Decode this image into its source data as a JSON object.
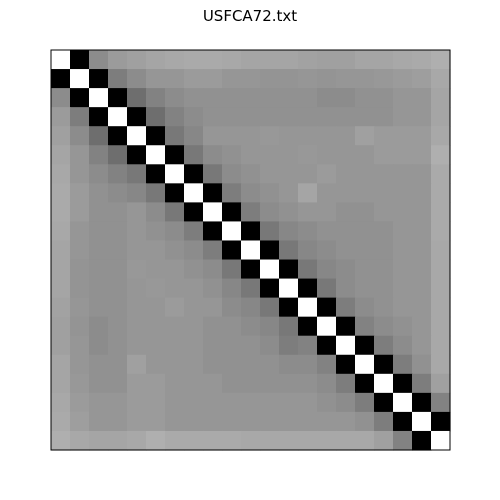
{
  "chart_data": {
    "type": "heatmap",
    "title": "USFCA72.txt",
    "xlabel": "",
    "ylabel": "",
    "grid": false,
    "size": 21,
    "colormap": "gray",
    "vmin": 0,
    "vmax": 255,
    "matrix": [
      [
        255,
        0,
        140,
        155,
        160,
        165,
        168,
        170,
        170,
        168,
        165,
        165,
        165,
        162,
        160,
        160,
        165,
        165,
        168,
        170,
        175
      ],
      [
        0,
        255,
        0,
        125,
        140,
        150,
        150,
        155,
        155,
        150,
        150,
        148,
        148,
        150,
        148,
        150,
        150,
        152,
        155,
        158,
        168
      ],
      [
        140,
        0,
        255,
        0,
        110,
        130,
        140,
        145,
        145,
        145,
        145,
        145,
        145,
        145,
        140,
        140,
        145,
        145,
        150,
        150,
        165
      ],
      [
        155,
        125,
        0,
        255,
        0,
        110,
        130,
        140,
        145,
        145,
        145,
        145,
        145,
        145,
        145,
        145,
        145,
        145,
        150,
        150,
        165
      ],
      [
        160,
        140,
        110,
        0,
        255,
        0,
        120,
        135,
        150,
        150,
        150,
        152,
        150,
        150,
        150,
        150,
        160,
        155,
        155,
        155,
        168
      ],
      [
        165,
        150,
        130,
        110,
        0,
        255,
        0,
        120,
        140,
        145,
        150,
        150,
        150,
        152,
        150,
        150,
        150,
        155,
        155,
        155,
        175
      ],
      [
        168,
        150,
        140,
        130,
        120,
        0,
        255,
        0,
        120,
        140,
        145,
        150,
        150,
        150,
        155,
        150,
        150,
        150,
        150,
        150,
        170
      ],
      [
        170,
        155,
        145,
        140,
        135,
        120,
        0,
        255,
        0,
        125,
        140,
        145,
        150,
        165,
        150,
        150,
        150,
        150,
        150,
        150,
        170
      ],
      [
        170,
        155,
        145,
        145,
        150,
        140,
        120,
        0,
        255,
        0,
        125,
        140,
        145,
        150,
        150,
        145,
        145,
        150,
        150,
        150,
        170
      ],
      [
        168,
        150,
        145,
        145,
        150,
        145,
        140,
        125,
        0,
        255,
        0,
        120,
        135,
        140,
        145,
        145,
        145,
        145,
        150,
        150,
        170
      ],
      [
        165,
        150,
        145,
        145,
        150,
        150,
        145,
        140,
        125,
        0,
        255,
        0,
        120,
        135,
        140,
        145,
        145,
        145,
        150,
        150,
        168
      ],
      [
        165,
        148,
        145,
        145,
        152,
        150,
        150,
        145,
        140,
        120,
        0,
        255,
        0,
        120,
        135,
        140,
        145,
        145,
        150,
        150,
        168
      ],
      [
        165,
        148,
        145,
        145,
        150,
        152,
        150,
        150,
        145,
        135,
        120,
        0,
        255,
        0,
        120,
        140,
        145,
        145,
        150,
        150,
        168
      ],
      [
        162,
        150,
        145,
        145,
        150,
        150,
        155,
        150,
        150,
        140,
        135,
        120,
        0,
        255,
        0,
        125,
        140,
        145,
        150,
        150,
        168
      ],
      [
        160,
        148,
        140,
        145,
        150,
        150,
        150,
        150,
        145,
        145,
        140,
        135,
        120,
        0,
        255,
        0,
        130,
        140,
        145,
        150,
        168
      ],
      [
        160,
        150,
        140,
        145,
        150,
        150,
        150,
        150,
        145,
        145,
        145,
        140,
        125,
        130,
        0,
        255,
        0,
        125,
        140,
        150,
        168
      ],
      [
        165,
        150,
        145,
        145,
        160,
        150,
        150,
        150,
        145,
        145,
        145,
        145,
        140,
        140,
        130,
        0,
        255,
        0,
        125,
        145,
        168
      ],
      [
        165,
        152,
        145,
        145,
        155,
        155,
        150,
        150,
        150,
        145,
        145,
        145,
        145,
        145,
        140,
        125,
        0,
        255,
        0,
        125,
        160
      ],
      [
        168,
        155,
        150,
        150,
        155,
        155,
        150,
        150,
        150,
        150,
        150,
        150,
        150,
        150,
        145,
        140,
        125,
        0,
        255,
        0,
        130
      ],
      [
        170,
        158,
        150,
        150,
        155,
        155,
        150,
        150,
        150,
        150,
        150,
        150,
        150,
        150,
        150,
        150,
        145,
        125,
        0,
        255,
        0
      ],
      [
        175,
        168,
        165,
        165,
        168,
        175,
        170,
        170,
        170,
        170,
        168,
        168,
        168,
        168,
        168,
        168,
        168,
        160,
        130,
        0,
        255
      ]
    ]
  }
}
